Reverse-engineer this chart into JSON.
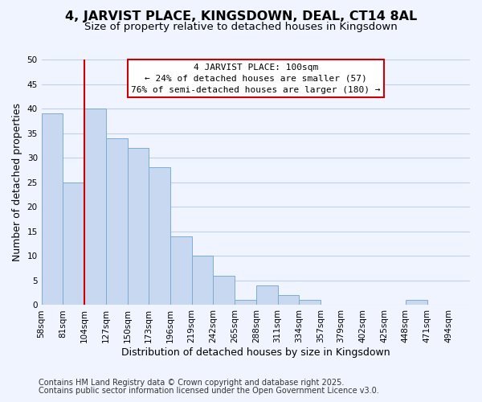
{
  "title": "4, JARVIST PLACE, KINGSDOWN, DEAL, CT14 8AL",
  "subtitle": "Size of property relative to detached houses in Kingsdown",
  "xlabel": "Distribution of detached houses by size in Kingsdown",
  "ylabel": "Number of detached properties",
  "bar_edges": [
    58,
    81,
    104,
    127,
    150,
    173,
    196,
    219,
    242,
    265,
    288,
    311,
    334,
    357,
    379,
    402,
    425,
    448,
    471,
    494,
    517
  ],
  "bar_heights": [
    39,
    25,
    40,
    34,
    32,
    28,
    14,
    10,
    6,
    1,
    4,
    2,
    1,
    0,
    0,
    0,
    0,
    1,
    0,
    0,
    0
  ],
  "bar_color": "#c8d8f0",
  "bar_edgecolor": "#7aadd4",
  "property_line_x": 104,
  "property_line_color": "#cc0000",
  "ylim": [
    0,
    50
  ],
  "yticks": [
    0,
    5,
    10,
    15,
    20,
    25,
    30,
    35,
    40,
    45,
    50
  ],
  "annotation_title": "4 JARVIST PLACE: 100sqm",
  "annotation_line1": "← 24% of detached houses are smaller (57)",
  "annotation_line2": "76% of semi-detached houses are larger (180) →",
  "annotation_box_color": "#ffffff",
  "annotation_box_edgecolor": "#cc0000",
  "footnote1": "Contains HM Land Registry data © Crown copyright and database right 2025.",
  "footnote2": "Contains public sector information licensed under the Open Government Licence v3.0.",
  "background_color": "#f0f4ff",
  "grid_color": "#c0d0e8",
  "title_fontsize": 11.5,
  "subtitle_fontsize": 9.5,
  "axis_label_fontsize": 9,
  "tick_label_fontsize": 7.5,
  "footnote_fontsize": 7
}
